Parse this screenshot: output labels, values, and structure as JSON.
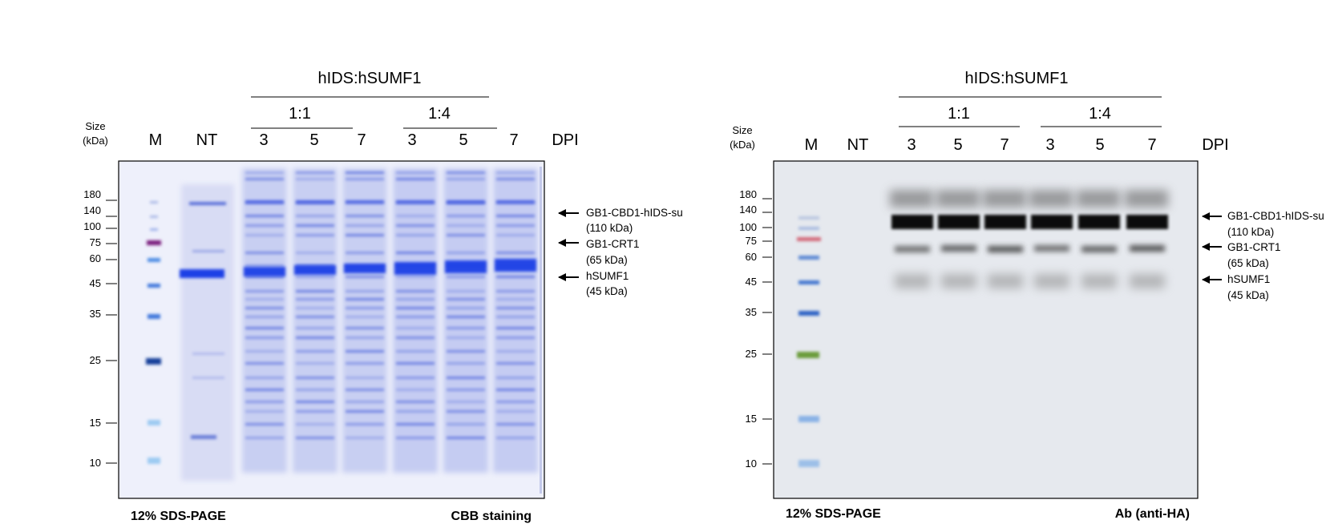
{
  "panels": [
    {
      "id": "left",
      "size_title": [
        "Size",
        "(kDa)"
      ],
      "header": "hIDS:hSUMF1",
      "ratio_groups": [
        {
          "label": "1:1",
          "lanes": [
            2,
            3,
            4
          ]
        },
        {
          "label": "1:4",
          "lanes": [
            5,
            6,
            7
          ]
        }
      ],
      "lane_labels": [
        "M",
        "NT",
        "3",
        "5",
        "7",
        "3",
        "5",
        "7"
      ],
      "dpi_label": "DPI",
      "mw_ticks": [
        "180",
        "140",
        "100",
        "75",
        "60",
        "45",
        "35",
        "25",
        "15",
        "10"
      ],
      "annotations": [
        {
          "name": "GB1-CBD1-hIDS-su",
          "size": "(110 kDa)"
        },
        {
          "name": "GB1-CRT1",
          "size": "(65 kDa)"
        },
        {
          "name": "hSUMF1",
          "size": "(45 kDa)"
        }
      ],
      "footer_left": "12% SDS-PAGE",
      "footer_right": "CBB staining",
      "stain": "coomassie",
      "background_color": "#eef0fb",
      "band_color": "#1f3fe6"
    },
    {
      "id": "right",
      "size_title": [
        "Size",
        "(kDa)"
      ],
      "header": "hIDS:hSUMF1",
      "ratio_groups": [
        {
          "label": "1:1",
          "lanes": [
            2,
            3,
            4
          ]
        },
        {
          "label": "1:4",
          "lanes": [
            5,
            6,
            7
          ]
        }
      ],
      "lane_labels": [
        "M",
        "NT",
        "3",
        "5",
        "7",
        "3",
        "5",
        "7"
      ],
      "dpi_label": "DPI",
      "mw_ticks": [
        "180",
        "140",
        "100",
        "75",
        "60",
        "45",
        "35",
        "25",
        "15",
        "10"
      ],
      "annotations": [
        {
          "name": "GB1-CBD1-hIDS-su",
          "size": "(110 kDa)"
        },
        {
          "name": "GB1-CRT1",
          "size": "(65 kDa)"
        },
        {
          "name": "hSUMF1",
          "size": "(45 kDa)"
        }
      ],
      "footer_left": "12% SDS-PAGE",
      "footer_right": "Ab (anti-HA)",
      "stain": "western",
      "background_color": "#e6e9ee",
      "band_color": "#000000"
    }
  ]
}
